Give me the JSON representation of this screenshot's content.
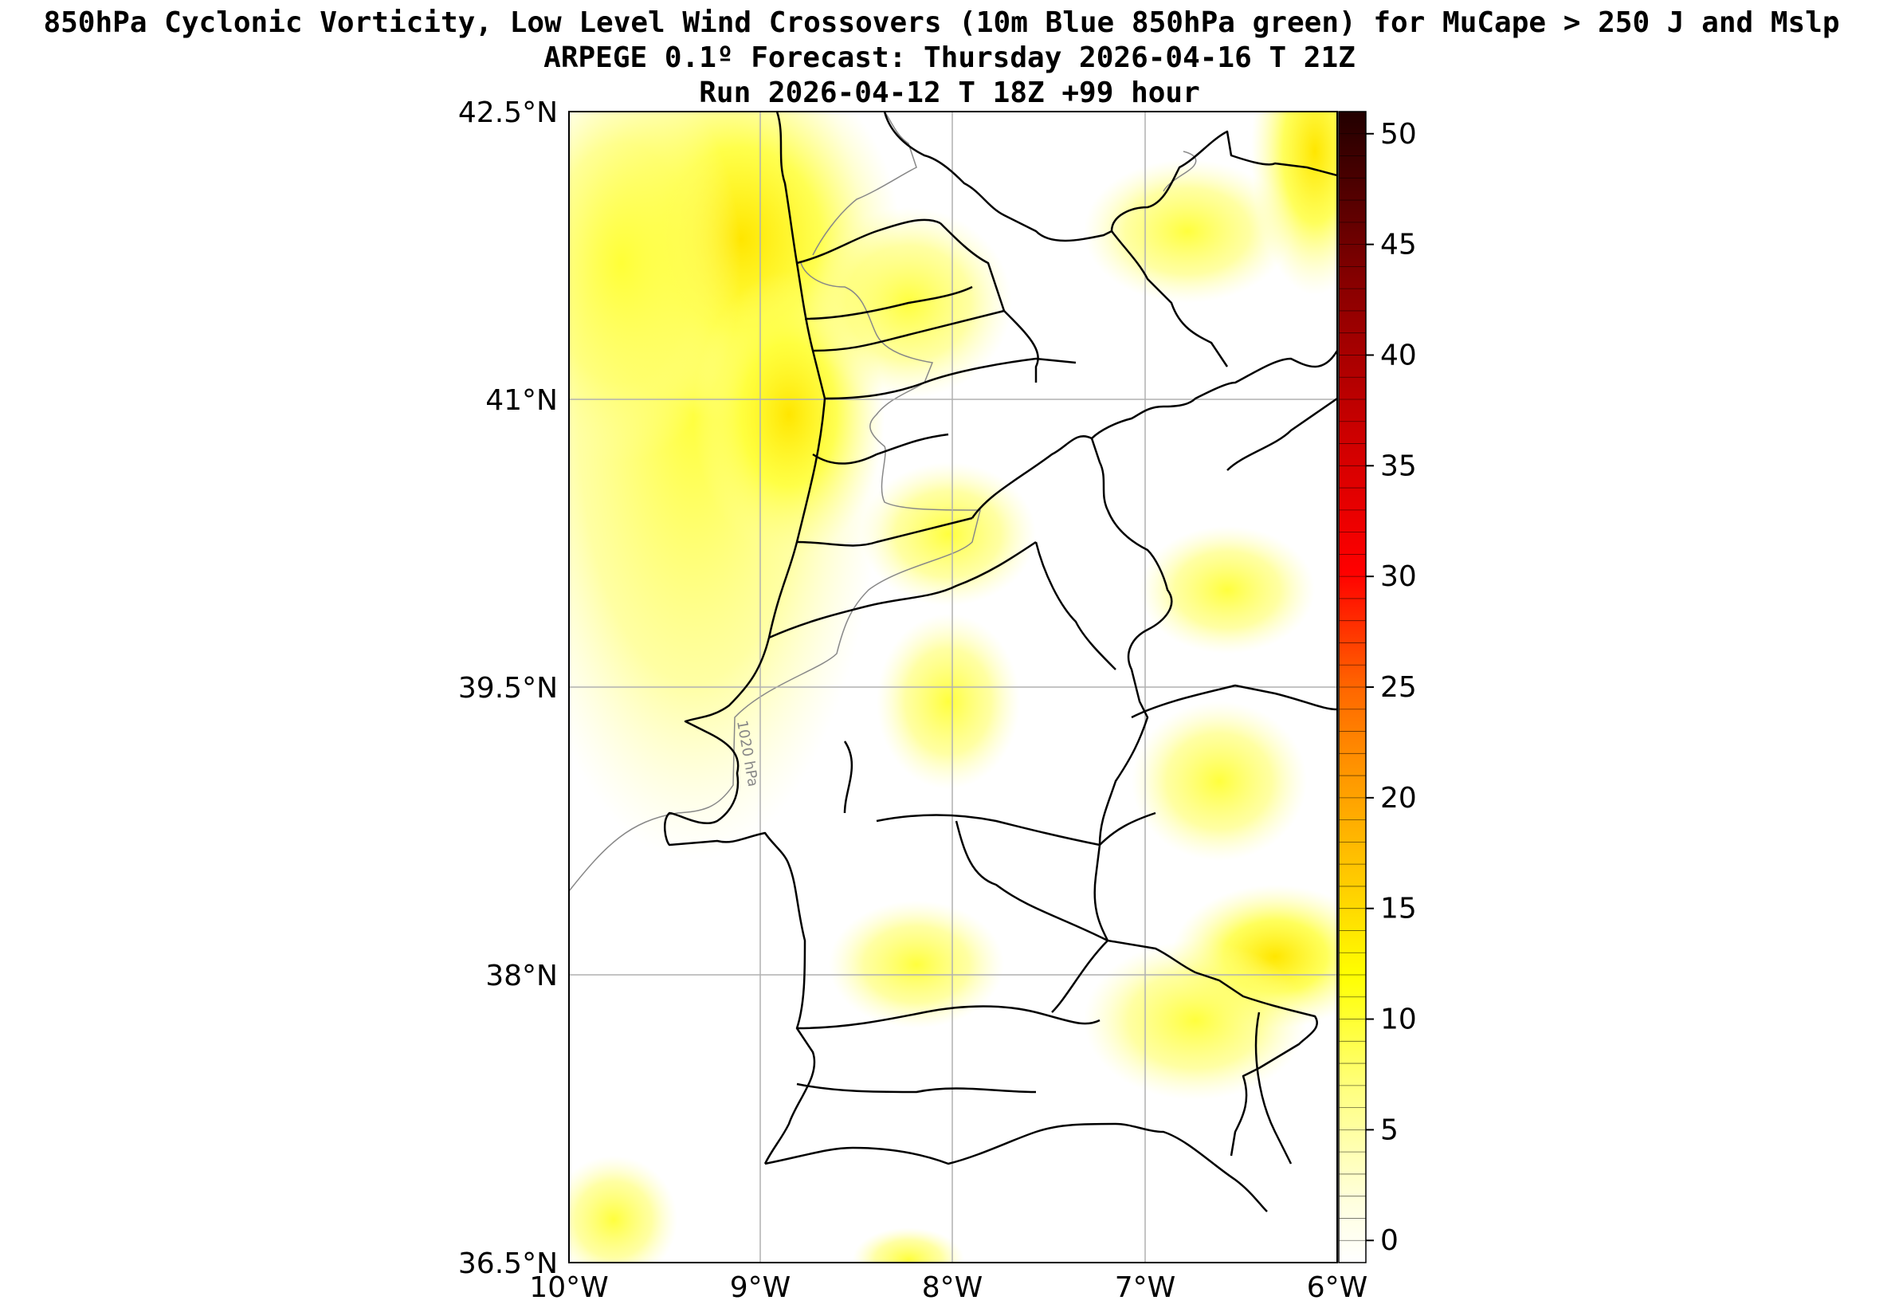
{
  "title": {
    "line1": "850hPa Cyclonic Vorticity, Low Level Wind Crossovers (10m Blue 850hPa green) for MuCape > 250 J and Mslp",
    "line2": "ARPEGE 0.1º Forecast: Thursday 2026-04-16 T 21Z",
    "line3": "Run 2026-04-12 T 18Z +99 hour"
  },
  "map": {
    "lon_range": [
      -10,
      -6
    ],
    "lat_range": [
      36.5,
      42.5
    ],
    "lat_ticks": [
      "42.5°N",
      "41°N",
      "39.5°N",
      "38°N",
      "36.5°N"
    ],
    "lon_ticks": [
      "10°W",
      "9°W",
      "8°W",
      "7°W",
      "6°W"
    ],
    "isobar_label": "1020 hPa",
    "gridlines": true
  },
  "colorbar": {
    "ticks": [
      "50",
      "45",
      "40",
      "35",
      "30",
      "25",
      "20",
      "15",
      "10",
      "5",
      "0"
    ],
    "range": [
      -1,
      51
    ],
    "colors": [
      "#ffffff",
      "#ffff80",
      "#ffff00",
      "#ffcc00",
      "#ff9900",
      "#ff6600",
      "#ff0000",
      "#cc0000",
      "#880000",
      "#330000"
    ]
  }
}
